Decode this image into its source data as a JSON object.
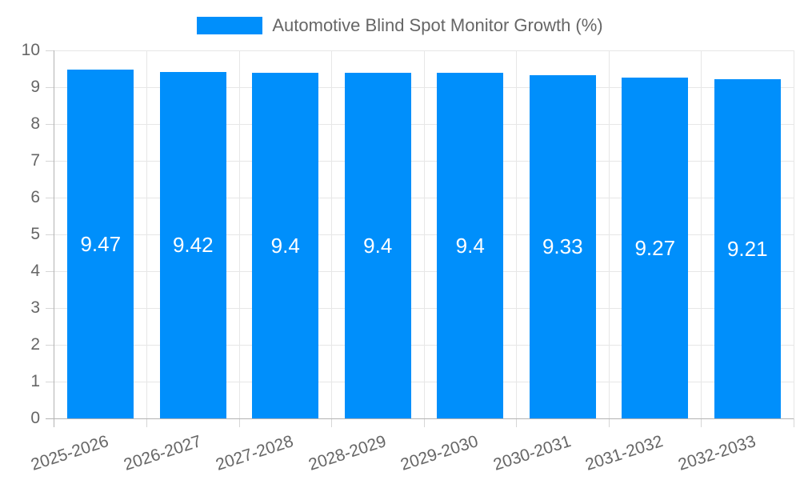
{
  "legend": {
    "label": "Automotive Blind Spot Monitor Growth (%)"
  },
  "colors": {
    "bar": "#008FFB",
    "text": "#666666",
    "value_label": "#ffffff",
    "grid": "#e7e7e7",
    "axis": "#b3b3b3",
    "tick": "#d6d6d6",
    "background": "#ffffff"
  },
  "chart_data": {
    "type": "bar",
    "title": "Automotive Blind Spot Monitor Growth (%)",
    "categories": [
      "2025-2026",
      "2026-2027",
      "2027-2028",
      "2028-2029",
      "2029-2030",
      "2030-2031",
      "2031-2032",
      "2032-2033"
    ],
    "values": [
      9.47,
      9.42,
      9.4,
      9.4,
      9.4,
      9.33,
      9.27,
      9.21
    ],
    "value_labels": [
      "9.47",
      "9.42",
      "9.4",
      "9.4",
      "9.4",
      "9.33",
      "9.27",
      "9.21"
    ],
    "xlabel": "",
    "ylabel": "",
    "ylim": [
      0,
      10
    ],
    "ytick_step": 1,
    "ytick_labels": [
      "0",
      "1",
      "2",
      "3",
      "4",
      "5",
      "6",
      "7",
      "8",
      "9",
      "10"
    ],
    "grid": true,
    "legend_position": "top",
    "value_labels_inside_bars": true,
    "xtick_rotation_deg": -18
  }
}
